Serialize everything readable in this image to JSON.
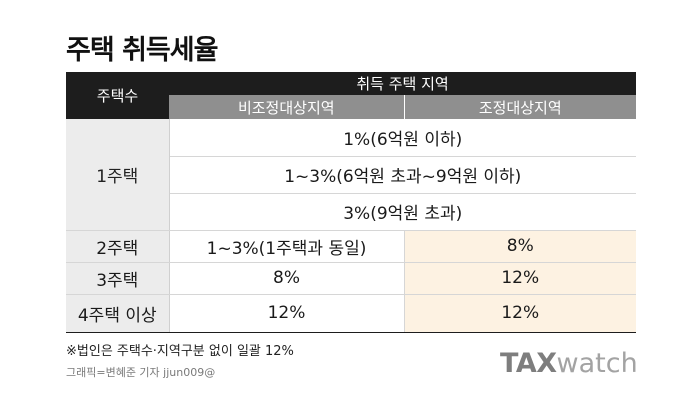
{
  "title": "주택 취득세율",
  "table": {
    "col_header": "주택수",
    "group_header": "취득 주택 지역",
    "sub_headers": [
      "비조정대상지역",
      "조정대상지역"
    ],
    "one_house": {
      "label": "1주택",
      "rates": [
        "1%(6억원 이하)",
        "1~3%(6억원 초과~9억원 이하)",
        "3%(9억원 초과)"
      ]
    },
    "rows": [
      {
        "label": "2주택",
        "non_adjusted": "1~3%(1주택과 동일)",
        "adjusted": "8%"
      },
      {
        "label": "3주택",
        "non_adjusted": "8%",
        "adjusted": "12%"
      },
      {
        "label": "4주택 이상",
        "non_adjusted": "12%",
        "adjusted": "12%"
      }
    ]
  },
  "note": "※법인은 주택수·지역구분 없이 일괄 12%",
  "credit": "그래픽=변혜준 기자 jjun009@",
  "logo": {
    "bold": "TAX",
    "light": "watch"
  },
  "colors": {
    "header_dark": "#1d1d1d",
    "header_sub": "#8f8f8f",
    "label_bg": "#ececec",
    "highlight": "#fdf2e2"
  }
}
